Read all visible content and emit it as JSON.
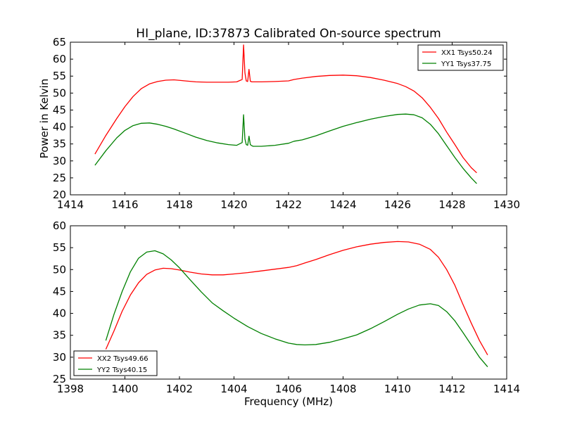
{
  "figure": {
    "title": "HI_plane, ID:37873 Calibrated On-source spectrum"
  },
  "chart_data": [
    {
      "type": "line",
      "title": "HI_plane, ID:37873 Calibrated On-source spectrum",
      "xlabel": "",
      "ylabel": "Power in Kelvin",
      "xlim": [
        1414,
        1430
      ],
      "ylim": [
        20,
        65
      ],
      "xticks": [
        1414,
        1416,
        1418,
        1420,
        1422,
        1424,
        1426,
        1428,
        1430
      ],
      "yticks": [
        20,
        25,
        30,
        35,
        40,
        45,
        50,
        55,
        60,
        65
      ],
      "grid": false,
      "legend": "top-right",
      "series": [
        {
          "name": "XX1 Tsys50.24",
          "color": "#ff0000",
          "x": [
            1414.9,
            1415.3,
            1415.7,
            1416.0,
            1416.3,
            1416.6,
            1416.9,
            1417.2,
            1417.5,
            1417.8,
            1418.2,
            1418.6,
            1419.0,
            1419.4,
            1419.8,
            1420.1,
            1420.3,
            1420.35,
            1420.4,
            1420.45,
            1420.5,
            1420.55,
            1420.6,
            1420.65,
            1420.7,
            1421.0,
            1421.5,
            1422.0,
            1422.2,
            1422.5,
            1423.0,
            1423.5,
            1424.0,
            1424.5,
            1425.0,
            1425.5,
            1426.0,
            1426.3,
            1426.6,
            1426.9,
            1427.2,
            1427.5,
            1427.8,
            1428.1,
            1428.4,
            1428.7,
            1428.9
          ],
          "y": [
            32.0,
            37.5,
            42.5,
            46.0,
            49.0,
            51.3,
            52.7,
            53.4,
            53.8,
            53.9,
            53.6,
            53.3,
            53.2,
            53.2,
            53.2,
            53.3,
            54.0,
            64.2,
            56.0,
            53.6,
            53.4,
            57.0,
            53.5,
            53.3,
            53.3,
            53.3,
            53.4,
            53.6,
            54.0,
            54.4,
            54.9,
            55.2,
            55.3,
            55.1,
            54.6,
            53.8,
            52.8,
            51.9,
            50.6,
            48.6,
            45.8,
            42.5,
            38.5,
            34.8,
            31.0,
            28.0,
            26.5
          ]
        },
        {
          "name": "YY1 Tsys37.75",
          "color": "#008000",
          "x": [
            1414.9,
            1415.3,
            1415.7,
            1416.0,
            1416.3,
            1416.6,
            1416.9,
            1417.2,
            1417.5,
            1417.8,
            1418.2,
            1418.6,
            1419.0,
            1419.4,
            1419.8,
            1420.1,
            1420.3,
            1420.35,
            1420.4,
            1420.45,
            1420.5,
            1420.55,
            1420.6,
            1420.65,
            1420.7,
            1421.0,
            1421.5,
            1422.0,
            1422.2,
            1422.5,
            1423.0,
            1423.5,
            1424.0,
            1424.5,
            1425.0,
            1425.5,
            1426.0,
            1426.3,
            1426.6,
            1426.9,
            1427.2,
            1427.5,
            1427.8,
            1428.1,
            1428.4,
            1428.7,
            1428.9
          ],
          "y": [
            28.7,
            33.0,
            36.8,
            39.0,
            40.4,
            41.1,
            41.2,
            40.8,
            40.2,
            39.4,
            38.2,
            37.0,
            36.0,
            35.3,
            34.8,
            34.6,
            35.4,
            43.6,
            36.5,
            34.8,
            34.6,
            37.3,
            34.8,
            34.5,
            34.3,
            34.3,
            34.6,
            35.2,
            35.8,
            36.2,
            37.4,
            38.8,
            40.2,
            41.3,
            42.3,
            43.1,
            43.7,
            43.8,
            43.6,
            42.7,
            40.8,
            38.0,
            34.5,
            31.0,
            27.8,
            25.0,
            23.3
          ]
        }
      ]
    },
    {
      "type": "line",
      "title": "",
      "xlabel": "Frequency (MHz)",
      "ylabel": "",
      "xlim": [
        1398,
        1414
      ],
      "ylim": [
        25,
        60
      ],
      "xticks": [
        1398,
        1400,
        1402,
        1404,
        1406,
        1408,
        1410,
        1412,
        1414
      ],
      "yticks": [
        25,
        30,
        35,
        40,
        45,
        50,
        55,
        60
      ],
      "grid": false,
      "legend": "bottom-left",
      "series": [
        {
          "name": "XX2 Tsys49.66",
          "color": "#ff0000",
          "x": [
            1399.3,
            1399.6,
            1399.9,
            1400.2,
            1400.5,
            1400.8,
            1401.1,
            1401.4,
            1401.7,
            1402.0,
            1402.4,
            1402.8,
            1403.2,
            1403.6,
            1404.0,
            1404.5,
            1405.0,
            1405.5,
            1406.0,
            1406.3,
            1406.6,
            1407.0,
            1407.5,
            1408.0,
            1408.5,
            1409.0,
            1409.5,
            1410.0,
            1410.4,
            1410.8,
            1411.2,
            1411.5,
            1411.8,
            1412.1,
            1412.4,
            1412.7,
            1413.0,
            1413.3
          ],
          "y": [
            31.8,
            36.0,
            40.5,
            44.2,
            47.0,
            48.9,
            49.9,
            50.3,
            50.2,
            49.9,
            49.4,
            49.0,
            48.8,
            48.8,
            49.0,
            49.3,
            49.7,
            50.1,
            50.5,
            50.9,
            51.5,
            52.3,
            53.4,
            54.4,
            55.2,
            55.8,
            56.2,
            56.4,
            56.3,
            55.8,
            54.6,
            52.8,
            50.0,
            46.4,
            42.0,
            37.8,
            33.8,
            30.5
          ]
        },
        {
          "name": "YY2 Tsys40.15",
          "color": "#008000",
          "x": [
            1399.3,
            1399.6,
            1399.9,
            1400.2,
            1400.5,
            1400.8,
            1401.1,
            1401.4,
            1401.7,
            1402.0,
            1402.4,
            1402.8,
            1403.2,
            1403.6,
            1404.0,
            1404.5,
            1405.0,
            1405.5,
            1406.0,
            1406.3,
            1406.6,
            1407.0,
            1407.5,
            1408.0,
            1408.5,
            1409.0,
            1409.5,
            1410.0,
            1410.4,
            1410.8,
            1411.2,
            1411.5,
            1411.8,
            1412.1,
            1412.4,
            1412.7,
            1413.0,
            1413.3
          ],
          "y": [
            33.8,
            39.8,
            45.0,
            49.5,
            52.6,
            54.0,
            54.3,
            53.6,
            52.2,
            50.4,
            47.6,
            44.9,
            42.4,
            40.6,
            38.9,
            37.0,
            35.4,
            34.2,
            33.2,
            32.9,
            32.8,
            32.9,
            33.4,
            34.2,
            35.1,
            36.5,
            38.1,
            39.8,
            41.0,
            41.9,
            42.2,
            41.8,
            40.4,
            38.3,
            35.6,
            32.8,
            30.0,
            27.8
          ]
        }
      ]
    }
  ]
}
